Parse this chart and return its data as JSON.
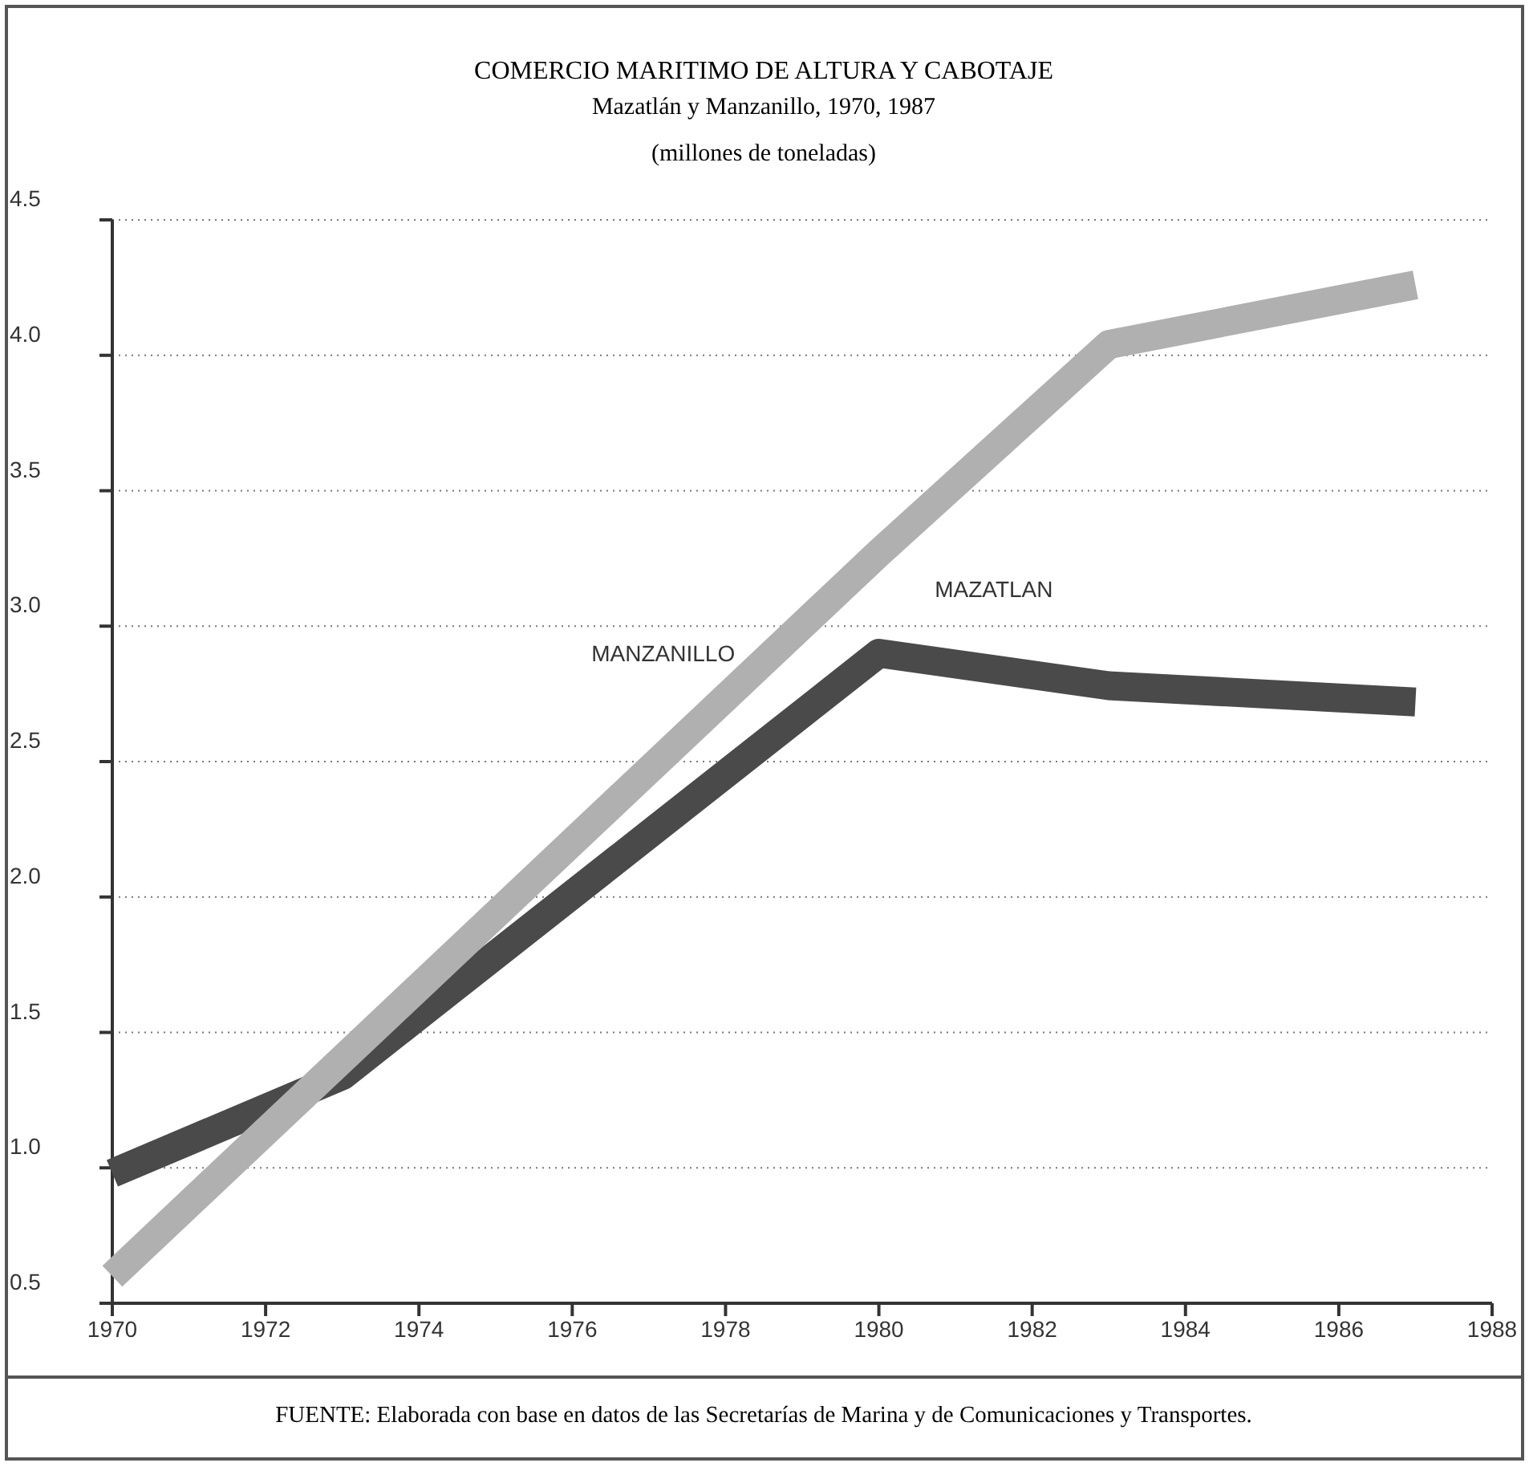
{
  "chart_data": {
    "type": "line",
    "title": "COMERCIO MARITIMO DE ALTURA Y CABOTAJE",
    "subtitle": "Mazatlán y Manzanillo, 1970, 1987",
    "annotations": [
      "(millones de toneladas)",
      "FUENTE: Elaborada con base en datos de las Secretarías de Marina y de Comunicaciones y Transportes."
    ],
    "xlim": [
      1970,
      1988
    ],
    "xticks": [
      1970,
      1972,
      1974,
      1976,
      1978,
      1980,
      1982,
      1984,
      1986,
      1988
    ],
    "ylim": [
      0.5,
      4.5
    ],
    "yticks": [
      0.5,
      {
        "value": 1,
        "label": "1.0"
      },
      1.5,
      {
        "value": 2,
        "label": "2.0"
      },
      2.5,
      {
        "value": 3,
        "label": "3.0"
      },
      3.5,
      {
        "value": 4,
        "label": "4.0"
      },
      4.5
    ],
    "grid": "y",
    "line_style": "solid",
    "marker": "none",
    "series": [
      {
        "name": "MANZANILLO",
        "color": "#b0b0b0",
        "x": [
          1970,
          1980,
          1983,
          1987
        ],
        "values": [
          0.6,
          3.27,
          4.04,
          4.26
        ]
      },
      {
        "name": "MAZATLAN",
        "color": "#4a4a4a",
        "x": [
          1970,
          1973,
          1980,
          1983,
          1987
        ],
        "values": [
          0.98,
          1.34,
          2.9,
          2.78,
          2.72
        ]
      }
    ]
  }
}
